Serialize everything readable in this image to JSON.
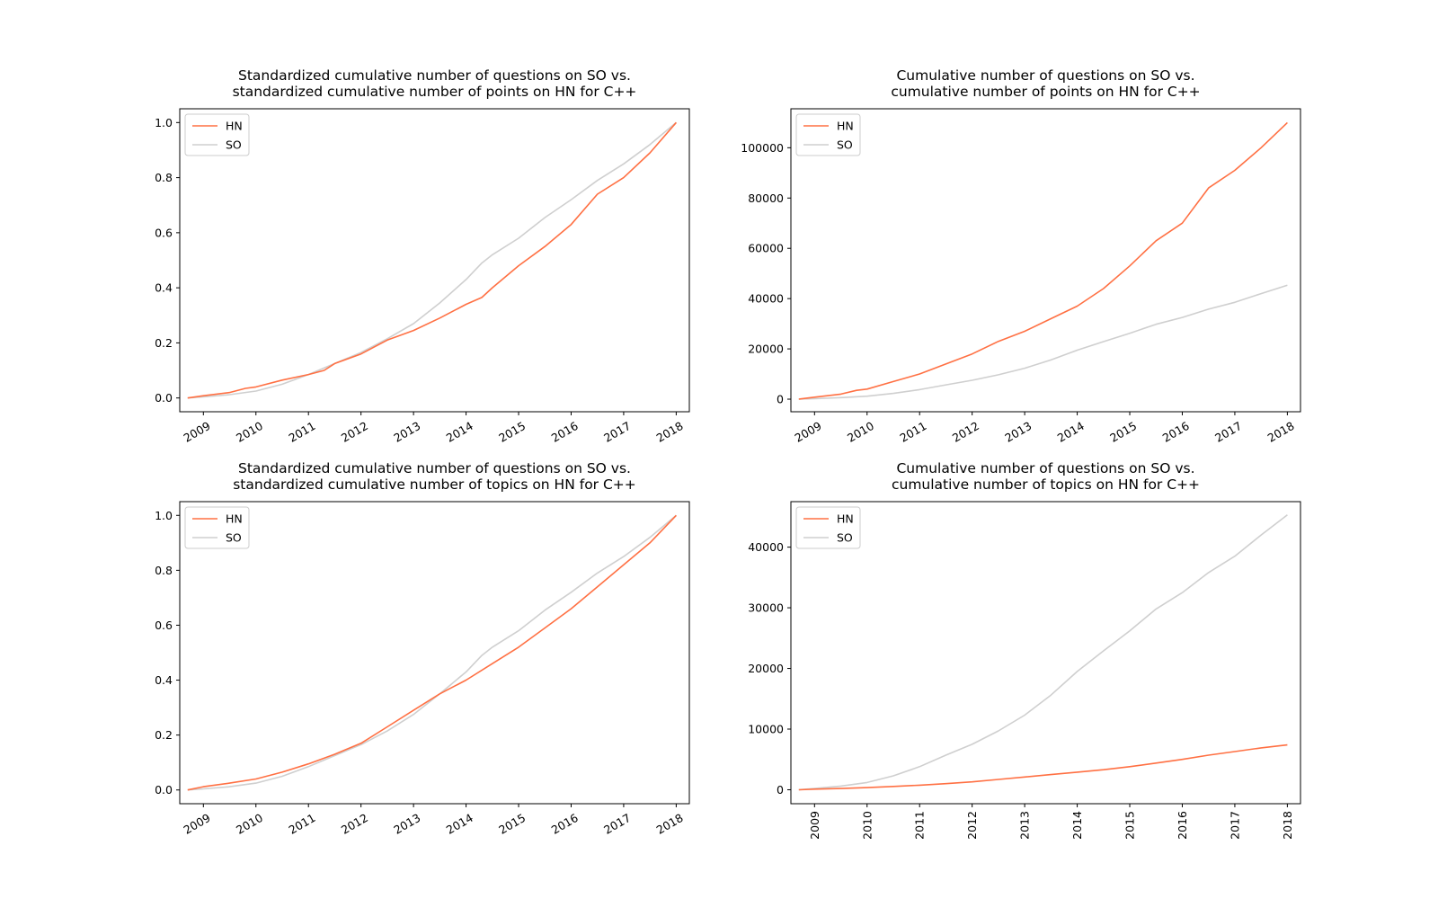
{
  "colors": {
    "hn": "#ff7043",
    "so": "#cfcfcf",
    "axis": "#000000"
  },
  "chart_data": [
    {
      "id": "top-left",
      "type": "line",
      "title": [
        "Standardized cumulative number of questions on SO vs.",
        "standardized cumulative number of points on HN for C++"
      ],
      "xlabel": "",
      "ylabel": "",
      "xlim": [
        2008.55,
        2018.25
      ],
      "ylim": [
        -0.05,
        1.05
      ],
      "xticks": [
        2009,
        2010,
        2011,
        2012,
        2013,
        2014,
        2015,
        2016,
        2017,
        2018
      ],
      "xtick_rotation": 30,
      "yticks": [
        0.0,
        0.2,
        0.4,
        0.6,
        0.8,
        1.0
      ],
      "ytick_labels": [
        "0.0",
        "0.2",
        "0.4",
        "0.6",
        "0.8",
        "1.0"
      ],
      "legend": {
        "position": "upper-left",
        "entries": [
          "HN",
          "SO"
        ]
      },
      "series": [
        {
          "name": "HN",
          "color": "#ff7043",
          "x": [
            2008.7,
            2009.0,
            2009.5,
            2009.8,
            2010.0,
            2010.5,
            2011.0,
            2011.3,
            2011.5,
            2012.0,
            2012.5,
            2013.0,
            2013.5,
            2014.0,
            2014.3,
            2014.5,
            2015.0,
            2015.5,
            2016.0,
            2016.5,
            2017.0,
            2017.5,
            2018.0
          ],
          "values": [
            0.0,
            0.008,
            0.02,
            0.035,
            0.04,
            0.065,
            0.085,
            0.1,
            0.125,
            0.16,
            0.21,
            0.245,
            0.29,
            0.34,
            0.365,
            0.4,
            0.48,
            0.55,
            0.63,
            0.74,
            0.8,
            0.89,
            1.0
          ]
        },
        {
          "name": "SO",
          "color": "#cfcfcf",
          "x": [
            2008.7,
            2009.0,
            2009.5,
            2010.0,
            2010.5,
            2011.0,
            2011.5,
            2012.0,
            2012.5,
            2013.0,
            2013.5,
            2014.0,
            2014.3,
            2014.5,
            2015.0,
            2015.5,
            2016.0,
            2016.5,
            2017.0,
            2017.5,
            2018.0
          ],
          "values": [
            0.0,
            0.004,
            0.012,
            0.025,
            0.05,
            0.085,
            0.125,
            0.165,
            0.215,
            0.27,
            0.345,
            0.43,
            0.49,
            0.52,
            0.58,
            0.655,
            0.72,
            0.79,
            0.85,
            0.92,
            1.0
          ]
        }
      ]
    },
    {
      "id": "top-right",
      "type": "line",
      "title": [
        "Cumulative number of questions on SO vs.",
        "cumulative number of points on HN for C++"
      ],
      "xlabel": "",
      "ylabel": "",
      "xlim": [
        2008.55,
        2018.25
      ],
      "ylim": [
        -5000,
        115500
      ],
      "xticks": [
        2009,
        2010,
        2011,
        2012,
        2013,
        2014,
        2015,
        2016,
        2017,
        2018
      ],
      "xtick_rotation": 30,
      "yticks": [
        0,
        20000,
        40000,
        60000,
        80000,
        100000
      ],
      "ytick_labels": [
        "0",
        "20000",
        "40000",
        "60000",
        "80000",
        "100000"
      ],
      "legend": {
        "position": "upper-left",
        "entries": [
          "HN",
          "SO"
        ]
      },
      "series": [
        {
          "name": "HN",
          "color": "#ff7043",
          "x": [
            2008.7,
            2009.0,
            2009.5,
            2009.8,
            2010.0,
            2010.5,
            2011.0,
            2011.5,
            2012.0,
            2012.5,
            2013.0,
            2013.5,
            2014.0,
            2014.5,
            2015.0,
            2015.5,
            2016.0,
            2016.5,
            2017.0,
            2017.5,
            2018.0
          ],
          "values": [
            0,
            800,
            2000,
            3500,
            4000,
            7000,
            10000,
            14000,
            18000,
            23000,
            27000,
            32000,
            37000,
            44000,
            53000,
            63000,
            70000,
            84000,
            91000,
            100000,
            110000
          ]
        },
        {
          "name": "SO",
          "color": "#cfcfcf",
          "x": [
            2008.7,
            2009.0,
            2009.5,
            2010.0,
            2010.5,
            2011.0,
            2011.5,
            2012.0,
            2012.5,
            2013.0,
            2013.5,
            2014.0,
            2014.5,
            2015.0,
            2015.5,
            2016.0,
            2016.5,
            2017.0,
            2017.5,
            2018.0
          ],
          "values": [
            0,
            200,
            600,
            1200,
            2300,
            3800,
            5700,
            7500,
            9700,
            12300,
            15600,
            19500,
            22900,
            26200,
            29800,
            32500,
            35800,
            38500,
            42000,
            45300
          ]
        }
      ]
    },
    {
      "id": "bottom-left",
      "type": "line",
      "title": [
        "Standardized cumulative number of questions on SO vs.",
        "standardized cumulative number of topics on HN for C++"
      ],
      "xlabel": "",
      "ylabel": "",
      "xlim": [
        2008.55,
        2018.25
      ],
      "ylim": [
        -0.05,
        1.05
      ],
      "xticks": [
        2009,
        2010,
        2011,
        2012,
        2013,
        2014,
        2015,
        2016,
        2017,
        2018
      ],
      "xtick_rotation": 30,
      "yticks": [
        0.0,
        0.2,
        0.4,
        0.6,
        0.8,
        1.0
      ],
      "ytick_labels": [
        "0.0",
        "0.2",
        "0.4",
        "0.6",
        "0.8",
        "1.0"
      ],
      "legend": {
        "position": "upper-left",
        "entries": [
          "HN",
          "SO"
        ]
      },
      "series": [
        {
          "name": "HN",
          "color": "#ff7043",
          "x": [
            2008.7,
            2009.0,
            2009.5,
            2010.0,
            2010.5,
            2011.0,
            2011.5,
            2012.0,
            2012.5,
            2013.0,
            2013.5,
            2014.0,
            2014.5,
            2015.0,
            2015.5,
            2016.0,
            2016.5,
            2017.0,
            2017.5,
            2018.0
          ],
          "values": [
            0.0,
            0.012,
            0.025,
            0.04,
            0.065,
            0.095,
            0.13,
            0.17,
            0.23,
            0.29,
            0.35,
            0.4,
            0.46,
            0.52,
            0.59,
            0.66,
            0.74,
            0.82,
            0.9,
            1.0
          ]
        },
        {
          "name": "SO",
          "color": "#cfcfcf",
          "x": [
            2008.7,
            2009.0,
            2009.5,
            2010.0,
            2010.5,
            2011.0,
            2011.5,
            2012.0,
            2012.5,
            2013.0,
            2013.5,
            2014.0,
            2014.3,
            2014.5,
            2015.0,
            2015.5,
            2016.0,
            2016.5,
            2017.0,
            2017.5,
            2018.0
          ],
          "values": [
            0.0,
            0.004,
            0.012,
            0.025,
            0.05,
            0.085,
            0.125,
            0.165,
            0.215,
            0.275,
            0.35,
            0.43,
            0.49,
            0.52,
            0.58,
            0.655,
            0.72,
            0.79,
            0.85,
            0.92,
            1.0
          ]
        }
      ]
    },
    {
      "id": "bottom-right",
      "type": "line",
      "title": [
        "Cumulative number of questions on SO vs.",
        "cumulative number of topics on HN for C++"
      ],
      "xlabel": "",
      "ylabel": "",
      "xlim": [
        2008.55,
        2018.25
      ],
      "ylim": [
        -2300,
        47500
      ],
      "xticks": [
        2009,
        2010,
        2011,
        2012,
        2013,
        2014,
        2015,
        2016,
        2017,
        2018
      ],
      "xtick_rotation": 90,
      "yticks": [
        0,
        10000,
        20000,
        30000,
        40000
      ],
      "ytick_labels": [
        "0",
        "10000",
        "20000",
        "30000",
        "40000"
      ],
      "legend": {
        "position": "upper-left",
        "entries": [
          "HN",
          "SO"
        ]
      },
      "series": [
        {
          "name": "HN",
          "color": "#ff7043",
          "x": [
            2008.7,
            2009.0,
            2009.5,
            2010.0,
            2010.5,
            2011.0,
            2011.5,
            2012.0,
            2012.5,
            2013.0,
            2013.5,
            2014.0,
            2014.5,
            2015.0,
            2015.5,
            2016.0,
            2016.5,
            2017.0,
            2017.5,
            2018.0
          ],
          "values": [
            0,
            100,
            200,
            350,
            550,
            750,
            1000,
            1300,
            1700,
            2100,
            2500,
            2900,
            3300,
            3800,
            4400,
            5000,
            5700,
            6300,
            6900,
            7400
          ]
        },
        {
          "name": "SO",
          "color": "#cfcfcf",
          "x": [
            2008.7,
            2009.0,
            2009.5,
            2010.0,
            2010.5,
            2011.0,
            2011.5,
            2012.0,
            2012.5,
            2013.0,
            2013.5,
            2014.0,
            2014.5,
            2015.0,
            2015.5,
            2016.0,
            2016.5,
            2017.0,
            2017.5,
            2018.0
          ],
          "values": [
            0,
            200,
            600,
            1200,
            2300,
            3800,
            5700,
            7500,
            9700,
            12300,
            15600,
            19500,
            22900,
            26200,
            29800,
            32500,
            35800,
            38500,
            42000,
            45300
          ]
        }
      ]
    }
  ]
}
